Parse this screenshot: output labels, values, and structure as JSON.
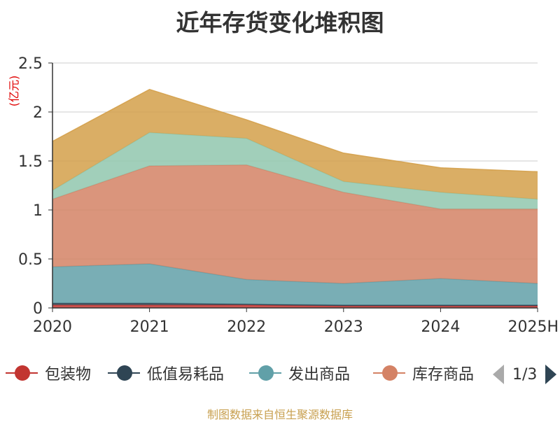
{
  "chart_data": {
    "type": "area",
    "title": "近年存货变化堆积图",
    "unit": "(亿元)",
    "categories": [
      "2020",
      "2021",
      "2022",
      "2023",
      "2024",
      "2025H"
    ],
    "ylim": [
      0,
      2.5
    ],
    "yticks": [
      "0",
      "0.5",
      "1",
      "1.5",
      "2",
      "2.5"
    ],
    "stacked": true,
    "grid": true,
    "legend_position": "bottom",
    "series": [
      {
        "name": "包装物",
        "color": "#c23531",
        "values": [
          0.03,
          0.03,
          0.03,
          0.02,
          0.02,
          0.02
        ]
      },
      {
        "name": "低值易耗品",
        "color": "#2f4554",
        "values": [
          0.02,
          0.02,
          0.01,
          0.01,
          0.01,
          0.01
        ]
      },
      {
        "name": "发出商品",
        "color": "#61a0a8",
        "values": [
          0.37,
          0.4,
          0.25,
          0.22,
          0.27,
          0.22
        ]
      },
      {
        "name": "库存商品",
        "color": "#d48265",
        "values": [
          0.69,
          1.0,
          1.17,
          0.93,
          0.71,
          0.76
        ]
      },
      {
        "name": "",
        "color": "#91c7ae",
        "values": [
          0.09,
          0.34,
          0.27,
          0.11,
          0.17,
          0.1
        ]
      },
      {
        "name": "",
        "color": "#d4a04a",
        "values": [
          0.5,
          0.44,
          0.19,
          0.29,
          0.25,
          0.28
        ]
      }
    ]
  },
  "legend": {
    "items": [
      {
        "label": "包装物",
        "color": "#c23531"
      },
      {
        "label": "低值易耗品",
        "color": "#2f4554"
      },
      {
        "label": "发出商品",
        "color": "#61a0a8"
      },
      {
        "label": "库存商品",
        "color": "#d48265"
      }
    ],
    "page": "1/3"
  },
  "footer": "制图数据来自恒生聚源数据库"
}
